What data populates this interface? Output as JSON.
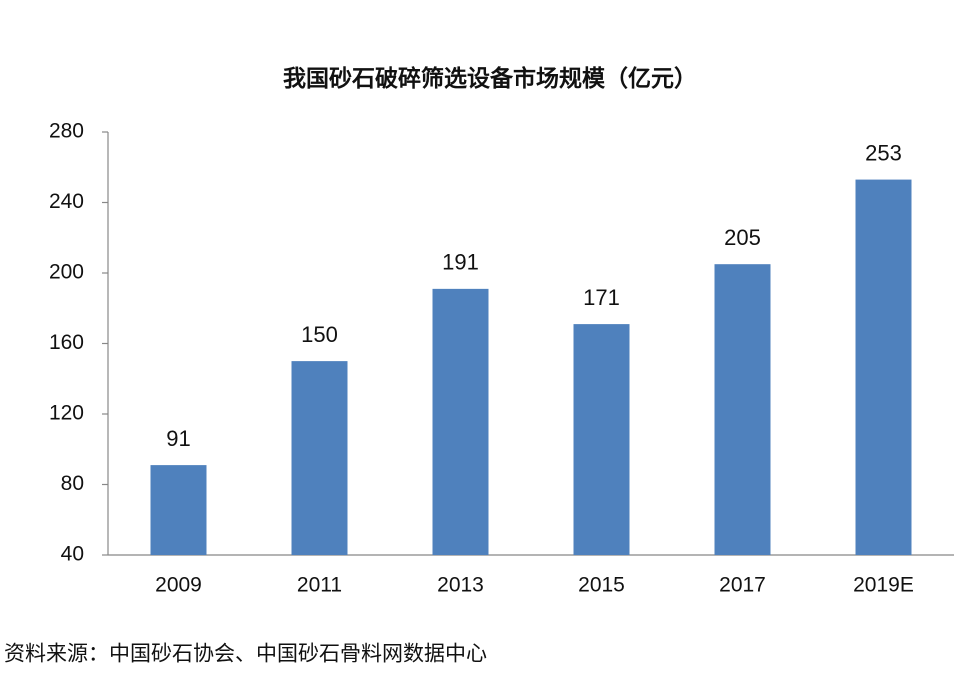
{
  "chart_data": {
    "type": "bar",
    "title": "我国砂石破碎筛选设备市场规模（亿元）",
    "categories": [
      "2009",
      "2011",
      "2013",
      "2015",
      "2017",
      "2019E"
    ],
    "values": [
      91,
      150,
      191,
      171,
      205,
      253
    ],
    "color": "#4f81bd",
    "ylim": [
      40,
      280
    ],
    "yticks": [
      40,
      80,
      120,
      160,
      200,
      240,
      280
    ],
    "grid": false,
    "source": "资料来源：中国砂石协会、中国砂石骨料网数据中心"
  }
}
